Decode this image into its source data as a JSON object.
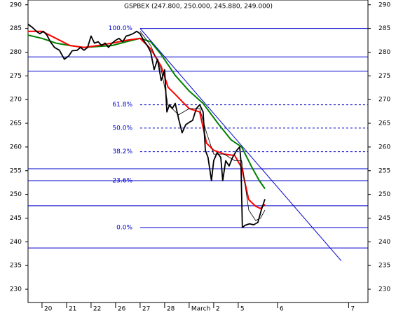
{
  "chart_data": {
    "type": "line",
    "title": "GSPBEX (247.800, 250.000, 245.880, 249.000)",
    "xlim": [
      -0.57,
      13.29
    ],
    "ylim": [
      227.2,
      291.0
    ],
    "yticks": [
      230,
      235,
      240,
      245,
      250,
      255,
      260,
      265,
      270,
      275,
      280,
      285,
      290
    ],
    "xticks": [
      {
        "value": 0,
        "label": "20"
      },
      {
        "value": 1,
        "label": "21"
      },
      {
        "value": 2,
        "label": "22"
      },
      {
        "value": 3,
        "label": "26"
      },
      {
        "value": 4,
        "label": "27"
      },
      {
        "value": 5,
        "label": "28"
      },
      {
        "value": 6,
        "label": "March"
      },
      {
        "value": 7,
        "label": "2"
      },
      {
        "value": 8,
        "label": "5"
      },
      {
        "value": 9.6,
        "label": "6"
      },
      {
        "value": 12.5,
        "label": "7"
      }
    ],
    "series": [
      {
        "color": "#008000",
        "width": 2,
        "x": [
          -0.57,
          0,
          0.57,
          1.14,
          1.71,
          2.29,
          2.86,
          3.43,
          4.0,
          4.43,
          4.86,
          5.43,
          6.0,
          6.57,
          7.14,
          7.71,
          8.14,
          8.57,
          8.86,
          9.09
        ],
        "values": [
          283.6,
          282.9,
          281.9,
          281.4,
          281.0,
          281.2,
          281.4,
          282.2,
          282.9,
          282.2,
          279.5,
          275.1,
          271.8,
          269.2,
          265.2,
          261.5,
          260.0,
          255.6,
          252.9,
          251.2
        ]
      },
      {
        "color": "#ff0000",
        "width": 2,
        "x": [
          -0.57,
          0,
          0.57,
          1.14,
          1.71,
          2.29,
          2.86,
          3.43,
          4.0,
          4.43,
          4.86,
          5.14,
          5.43,
          5.71,
          6.0,
          6.43,
          6.71,
          7.0,
          7.43,
          7.86,
          8.14,
          8.43,
          8.71,
          8.91,
          9.09
        ],
        "values": [
          284.4,
          284.4,
          282.9,
          281.4,
          281.0,
          281.4,
          281.9,
          282.5,
          282.9,
          280.7,
          277.0,
          272.6,
          271.1,
          269.6,
          268.1,
          267.4,
          260.8,
          259.3,
          258.5,
          258.2,
          255.6,
          248.9,
          247.5,
          247.0,
          247.9
        ]
      },
      {
        "color": "#000000",
        "width": 0.8,
        "x": [
          4.0,
          4.43,
          4.86,
          5.14,
          5.57,
          6.0,
          6.43,
          6.71,
          7.0,
          7.43,
          7.86,
          8.14,
          8.43,
          8.71,
          8.91,
          9.09
        ],
        "values": [
          284.4,
          281.4,
          276.3,
          268.9,
          266.8,
          268.1,
          268.1,
          263.0,
          258.5,
          258.5,
          257.1,
          257.1,
          246.7,
          244.5,
          245.0,
          246.7
        ]
      },
      {
        "color": "#000000",
        "width": 1.8,
        "x": [
          -0.57,
          -0.37,
          -0.23,
          -0.09,
          0.06,
          0.2,
          0.34,
          0.51,
          0.71,
          0.91,
          1.09,
          1.23,
          1.43,
          1.57,
          1.71,
          1.86,
          2.0,
          2.14,
          2.29,
          2.43,
          2.57,
          2.71,
          2.86,
          3.0,
          3.14,
          3.29,
          3.43,
          3.57,
          3.71,
          3.86,
          4.0,
          4.14,
          4.29,
          4.43,
          4.57,
          4.71,
          4.86,
          5.0,
          5.09,
          5.2,
          5.31,
          5.43,
          5.57,
          5.71,
          5.86,
          6.0,
          6.14,
          6.29,
          6.43,
          6.57,
          6.66,
          6.77,
          6.91,
          7.0,
          7.14,
          7.29,
          7.37,
          7.49,
          7.63,
          7.77,
          7.94,
          8.06,
          8.11,
          8.17,
          8.29,
          8.46,
          8.63,
          8.8,
          8.94,
          9.09
        ],
        "values": [
          285.9,
          285.1,
          284.4,
          283.9,
          284.4,
          283.6,
          282.2,
          281.0,
          280.4,
          278.5,
          279.2,
          280.3,
          280.4,
          281.0,
          280.4,
          281.0,
          283.4,
          281.9,
          282.2,
          281.4,
          281.9,
          281.0,
          281.9,
          282.5,
          282.9,
          282.2,
          283.4,
          283.6,
          283.9,
          284.4,
          283.9,
          282.5,
          281.4,
          280.0,
          276.3,
          278.5,
          274.0,
          276.3,
          267.4,
          268.9,
          268.1,
          269.2,
          265.9,
          263.0,
          264.7,
          265.2,
          265.6,
          268.1,
          268.9,
          267.4,
          259.3,
          257.8,
          252.9,
          257.1,
          258.8,
          257.8,
          252.9,
          257.1,
          256.0,
          257.8,
          259.3,
          260.0,
          257.1,
          243.0,
          243.5,
          243.8,
          243.6,
          244.1,
          246.7,
          249.0
        ]
      }
    ],
    "levels": [
      {
        "value": 285.0,
        "label": "100.0%"
      },
      {
        "value": 268.9,
        "label": "61.8%"
      },
      {
        "value": 264.0,
        "label": "50.0%"
      },
      {
        "value": 259.0,
        "label": "38.2%"
      },
      {
        "value": 252.9,
        "label": "23.6%"
      },
      {
        "value": 243.0,
        "label": "0.0%"
      }
    ],
    "level_start": 4.0,
    "hlines": [
      279.0,
      276.0,
      255.4,
      252.9,
      247.6,
      238.7
    ],
    "trendline": {
      "x": [
        4.0,
        12.2
      ],
      "values": [
        285.0,
        236.0
      ]
    },
    "guide_color": "#0000cc"
  }
}
